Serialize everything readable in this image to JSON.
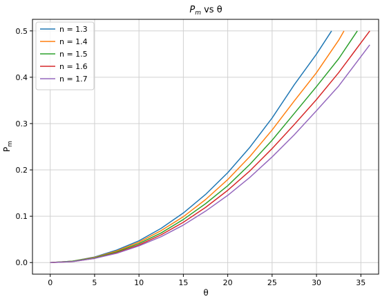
{
  "chart_data": {
    "type": "line",
    "title_main": "P",
    "title_sub": "m",
    "title_rest": " vs θ",
    "xlabel": "θ",
    "ylabel_main": "P",
    "ylabel_sub": "m",
    "xlim": [
      -2,
      37
    ],
    "ylim": [
      -0.025,
      0.525
    ],
    "xticks": [
      0,
      5,
      10,
      15,
      20,
      25,
      30,
      35
    ],
    "yticks": [
      0.0,
      0.1,
      0.2,
      0.3,
      0.4,
      0.5
    ],
    "xtick_labels": [
      "0",
      "5",
      "10",
      "15",
      "20",
      "25",
      "30",
      "35"
    ],
    "ytick_labels": [
      "0.0",
      "0.1",
      "0.2",
      "0.3",
      "0.4",
      "0.5"
    ],
    "grid": true,
    "legend_position": "top-left",
    "series": [
      {
        "name": "n = 1.3",
        "color": "#1f77b4",
        "x": [
          0,
          2.5,
          5,
          7.5,
          10,
          12.5,
          15,
          17.5,
          20,
          22.5,
          25,
          27.5,
          30,
          31.7
        ],
        "y": [
          0,
          0.003,
          0.012,
          0.027,
          0.047,
          0.074,
          0.107,
          0.147,
          0.194,
          0.249,
          0.312,
          0.384,
          0.45,
          0.5
        ]
      },
      {
        "name": "n = 1.4",
        "color": "#ff7f0e",
        "x": [
          0,
          2.5,
          5,
          7.5,
          10,
          12.5,
          15,
          17.5,
          20,
          22.5,
          25,
          27.5,
          30,
          32.5,
          33.1
        ],
        "y": [
          0,
          0.003,
          0.011,
          0.025,
          0.044,
          0.069,
          0.099,
          0.136,
          0.179,
          0.229,
          0.286,
          0.349,
          0.41,
          0.48,
          0.5
        ]
      },
      {
        "name": "n = 1.5",
        "color": "#2ca02c",
        "x": [
          0,
          2.5,
          5,
          7.5,
          10,
          12.5,
          15,
          17.5,
          20,
          22.5,
          25,
          27.5,
          30,
          32.5,
          34.6
        ],
        "y": [
          0,
          0.003,
          0.01,
          0.023,
          0.041,
          0.064,
          0.093,
          0.127,
          0.166,
          0.212,
          0.264,
          0.322,
          0.38,
          0.44,
          0.5
        ]
      },
      {
        "name": "n = 1.6",
        "color": "#d62728",
        "x": [
          0,
          2.5,
          5,
          7.5,
          10,
          12.5,
          15,
          17.5,
          20,
          22.5,
          25,
          27.5,
          30,
          32.5,
          36.0
        ],
        "y": [
          0,
          0.002,
          0.009,
          0.021,
          0.038,
          0.06,
          0.087,
          0.119,
          0.156,
          0.198,
          0.246,
          0.298,
          0.352,
          0.41,
          0.5
        ]
      },
      {
        "name": "n = 1.7",
        "color": "#9467bd",
        "x": [
          0,
          2.5,
          5,
          7.5,
          10,
          12.5,
          15,
          17.5,
          20,
          22.5,
          25,
          27.5,
          30,
          32.5,
          36.0
        ],
        "y": [
          0,
          0.002,
          0.009,
          0.02,
          0.036,
          0.056,
          0.081,
          0.111,
          0.145,
          0.184,
          0.228,
          0.276,
          0.328,
          0.381,
          0.47
        ]
      }
    ]
  }
}
